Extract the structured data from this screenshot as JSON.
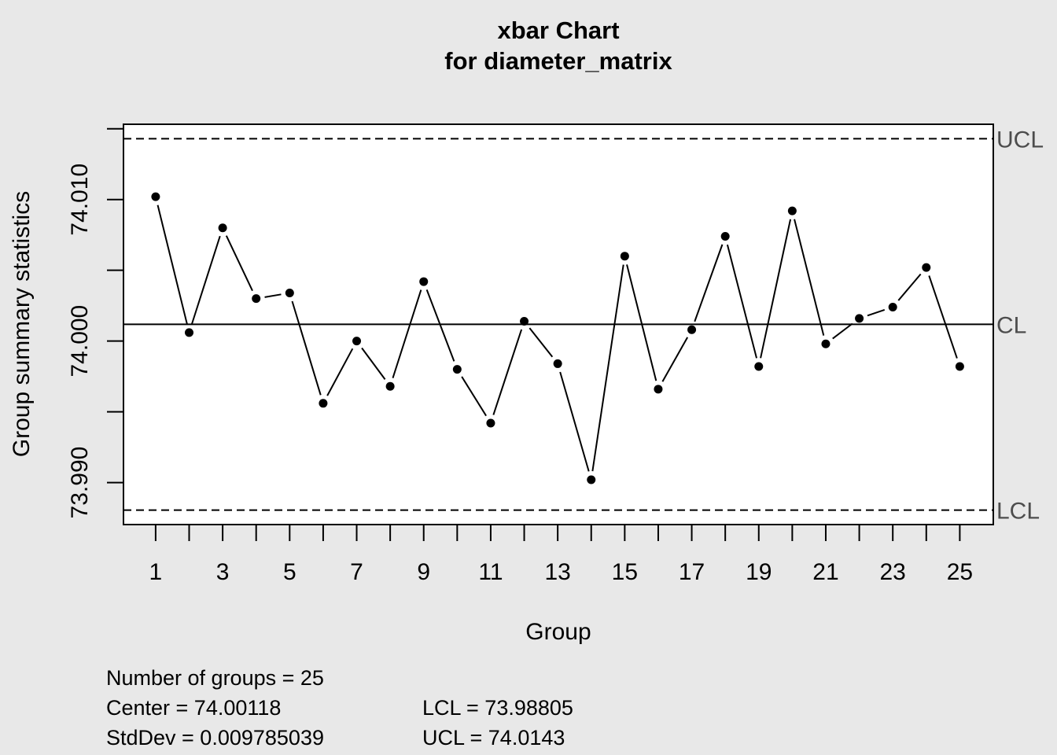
{
  "chart_data": {
    "type": "line",
    "title": "xbar Chart",
    "subtitle": "for diameter_matrix",
    "xlabel": "Group",
    "ylabel": "Group summary statistics",
    "x": [
      1,
      2,
      3,
      4,
      5,
      6,
      7,
      8,
      9,
      10,
      11,
      12,
      13,
      14,
      15,
      16,
      17,
      18,
      19,
      20,
      21,
      22,
      23,
      24,
      25
    ],
    "values": [
      74.0102,
      74.0006,
      74.008,
      74.003,
      74.0034,
      73.9956,
      74.0,
      73.9968,
      74.0042,
      73.998,
      73.9942,
      74.0014,
      73.9984,
      73.9902,
      74.006,
      73.9966,
      74.0008,
      74.0074,
      73.9982,
      74.0092,
      73.9998,
      74.0016,
      74.0024,
      74.0052,
      73.9982
    ],
    "xlim": [
      0.04,
      26.0
    ],
    "ylim": [
      73.98703,
      74.01532
    ],
    "x_ticks": [
      1,
      2,
      3,
      4,
      5,
      6,
      7,
      8,
      9,
      10,
      11,
      12,
      13,
      14,
      15,
      16,
      17,
      18,
      19,
      20,
      21,
      22,
      23,
      24,
      25
    ],
    "x_tick_labels": [
      "1",
      "3",
      "5",
      "7",
      "9",
      "11",
      "13",
      "15",
      "17",
      "19",
      "21",
      "23",
      "25"
    ],
    "x_tick_label_positions": [
      1,
      3,
      5,
      7,
      9,
      11,
      13,
      15,
      17,
      19,
      21,
      23,
      25
    ],
    "y_ticks": [
      73.99,
      73.995,
      74.0,
      74.005,
      74.01,
      74.015
    ],
    "y_tick_labels": [
      "73.990",
      "74.000",
      "74.010"
    ],
    "y_tick_label_positions": [
      73.99,
      74.0,
      74.01
    ],
    "limits": {
      "UCL": 74.0143,
      "CL": 74.00118,
      "LCL": 73.98805
    },
    "limit_labels": {
      "ucl": "UCL",
      "cl": "CL",
      "lcl": "LCL"
    },
    "grid": false,
    "colors": {
      "background": "#e8e8e8",
      "plot_bg": "#ffffff",
      "line": "#000000",
      "limit_label": "#4d4d4d"
    }
  },
  "stats": {
    "groups": "Number of groups = 25",
    "center": "Center = 74.00118",
    "stddev": "StdDev = 0.009785039",
    "lcl": "LCL = 73.98805",
    "ucl": "UCL = 74.0143"
  }
}
